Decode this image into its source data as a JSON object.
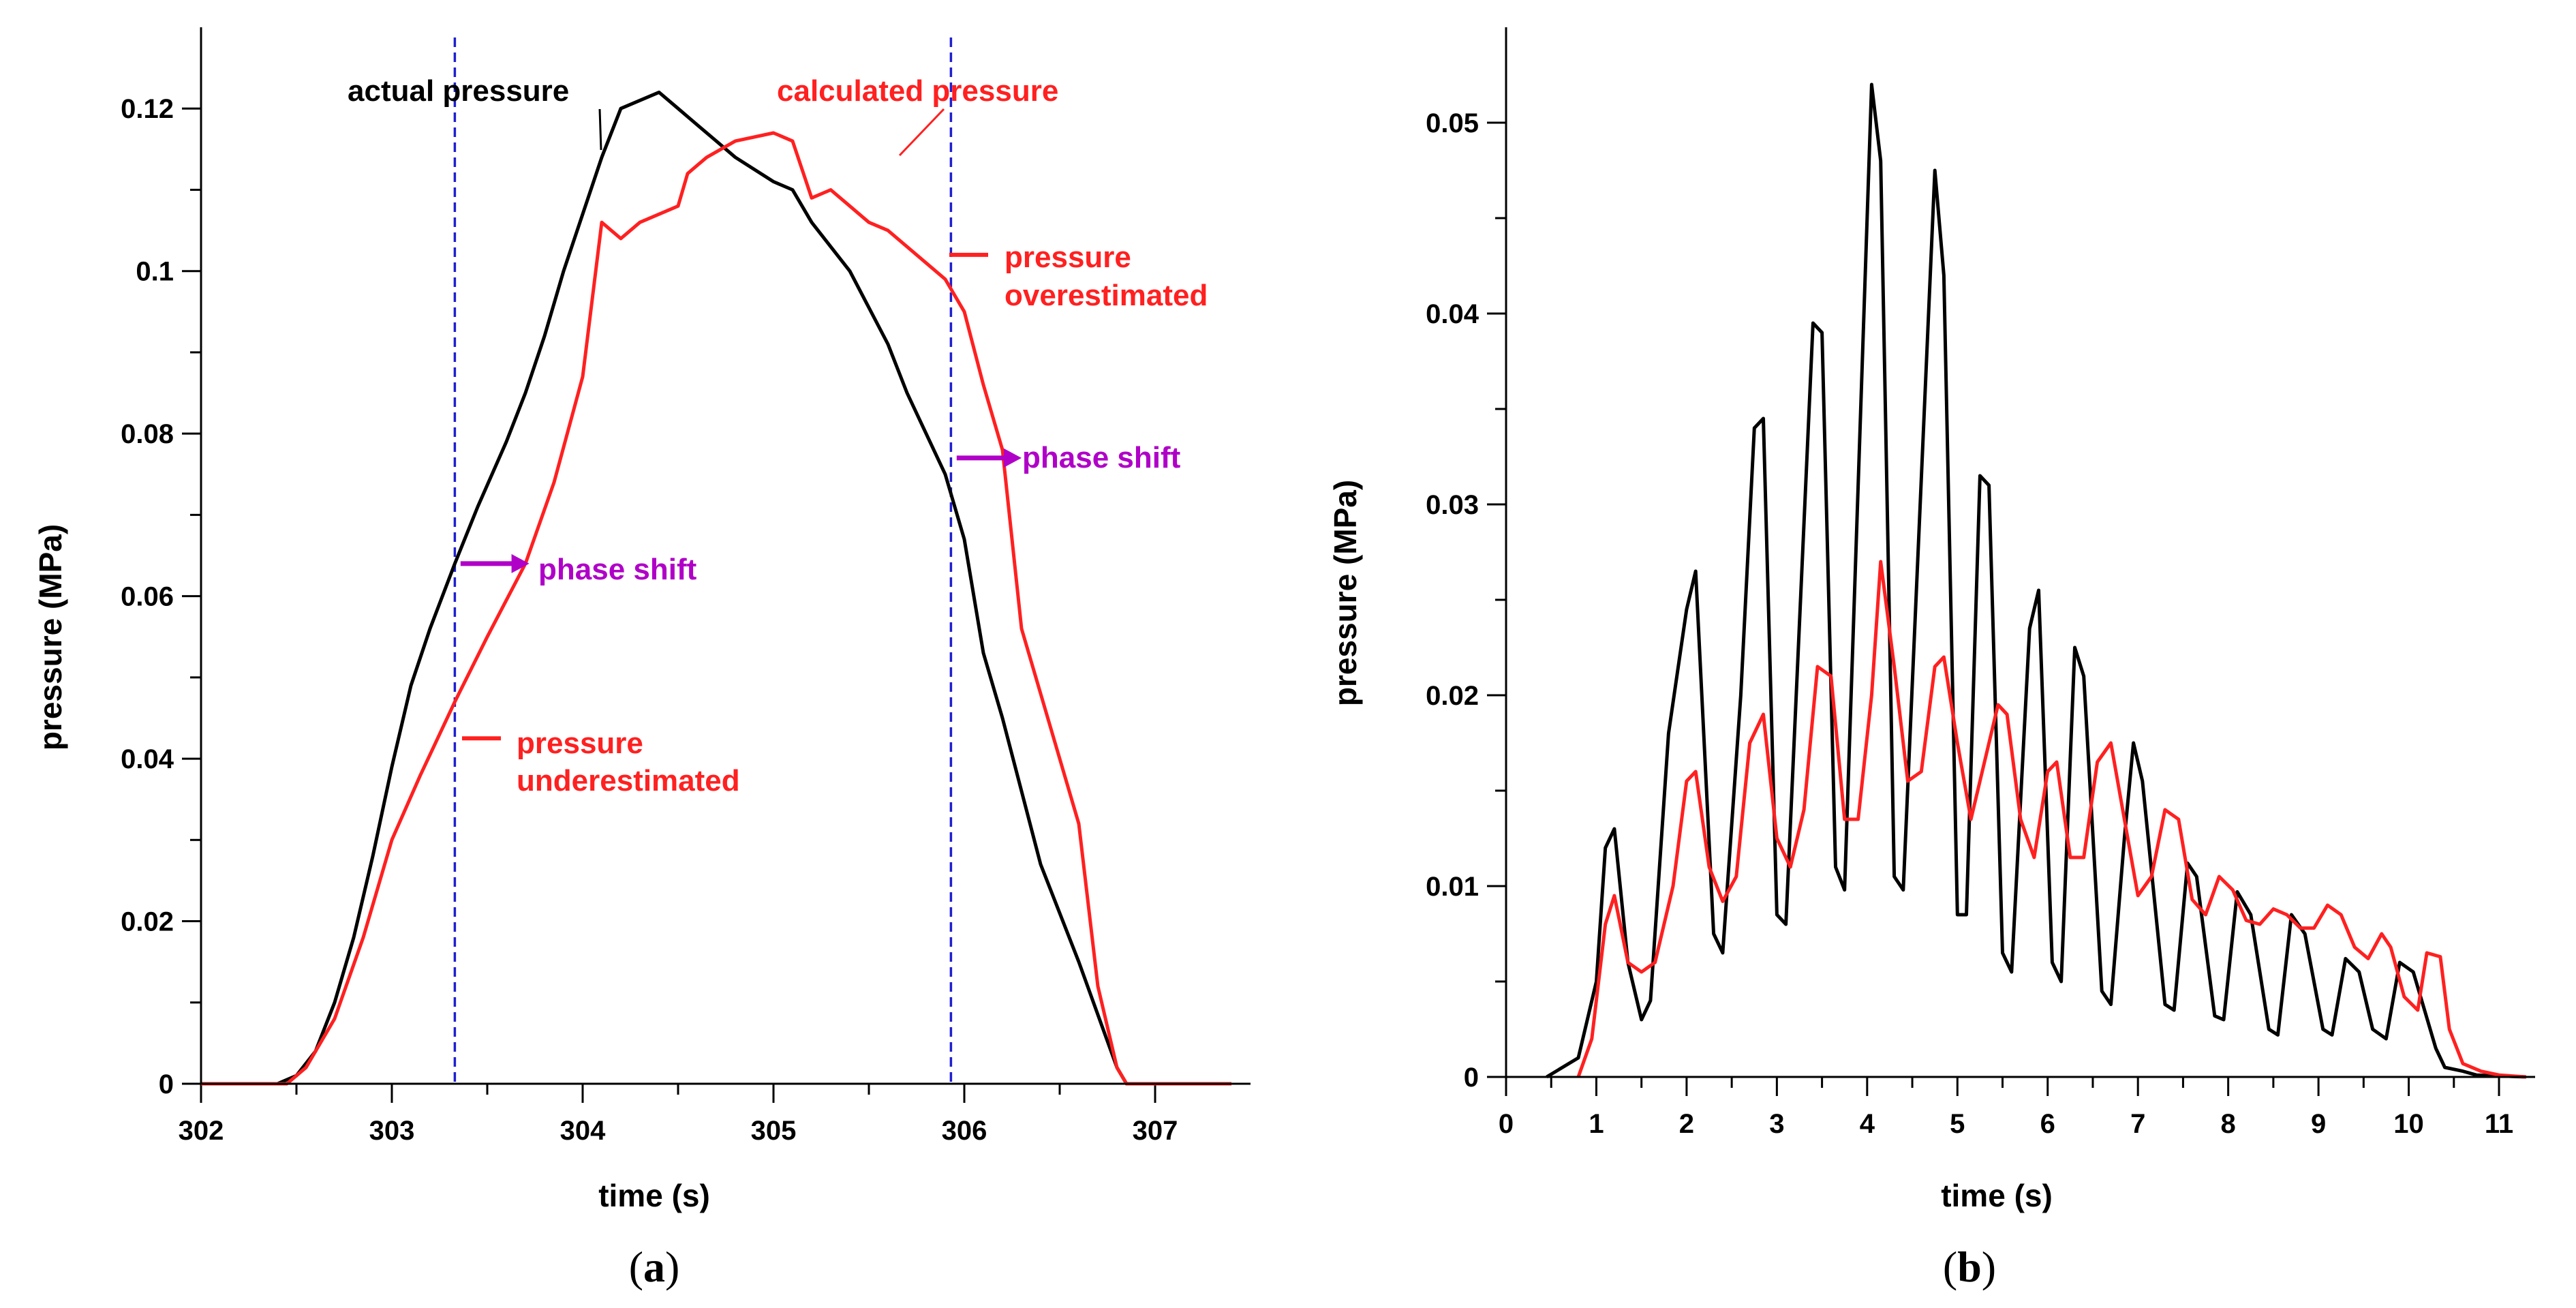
{
  "figure": {
    "colors": {
      "actual": "#000000",
      "calculated": "#ff2020",
      "marker": "#1f1fd0",
      "shift": "#b000c8"
    }
  },
  "chart_data": [
    {
      "type": "line",
      "panel_label": "(a)",
      "panel_letter": "a",
      "xlabel": "time (s)",
      "ylabel": "pressure (MPa)",
      "xlim": [
        302,
        307.5
      ],
      "ylim": [
        0,
        0.13
      ],
      "x_ticks": [
        302,
        303,
        304,
        305,
        306,
        307
      ],
      "x_tick_labels": [
        "302",
        "303",
        "304",
        "305",
        "306",
        "307"
      ],
      "y_ticks": [
        0,
        0.02,
        0.04,
        0.06,
        0.08,
        0.1,
        0.12
      ],
      "y_tick_labels": [
        "0",
        "0.02",
        "0.04",
        "0.06",
        "0.08",
        "0.1",
        "0.12"
      ],
      "series": [
        {
          "name": "actual pressure",
          "color": "#000000",
          "x": [
            302.0,
            302.4,
            302.5,
            302.6,
            302.7,
            302.8,
            302.9,
            303.0,
            303.1,
            303.2,
            303.33,
            303.45,
            303.6,
            303.7,
            303.8,
            303.9,
            304.0,
            304.1,
            304.2,
            304.3,
            304.4,
            304.5,
            304.6,
            304.7,
            304.8,
            305.0,
            305.1,
            305.2,
            305.4,
            305.6,
            305.7,
            305.8,
            305.9,
            306.0,
            306.1,
            306.2,
            306.4,
            306.6,
            306.8,
            306.85,
            307.0
          ],
          "y": [
            0,
            0,
            0.001,
            0.004,
            0.01,
            0.018,
            0.028,
            0.039,
            0.049,
            0.056,
            0.064,
            0.071,
            0.079,
            0.085,
            0.092,
            0.1,
            0.107,
            0.114,
            0.12,
            0.121,
            0.122,
            0.12,
            0.118,
            0.116,
            0.114,
            0.111,
            0.11,
            0.106,
            0.1,
            0.091,
            0.085,
            0.08,
            0.075,
            0.067,
            0.053,
            0.045,
            0.027,
            0.015,
            0.002,
            0,
            0
          ]
        },
        {
          "name": "calculated pressure",
          "color": "#ff2020",
          "x": [
            302.0,
            302.45,
            302.55,
            302.7,
            302.85,
            303.0,
            303.15,
            303.33,
            303.5,
            303.7,
            303.85,
            304.0,
            304.1,
            304.2,
            304.3,
            304.5,
            304.55,
            304.65,
            304.8,
            305.0,
            305.1,
            305.2,
            305.3,
            305.4,
            305.5,
            305.6,
            305.8,
            305.9,
            306.0,
            306.1,
            306.2,
            306.3,
            306.4,
            306.6,
            306.7,
            306.8,
            306.85,
            307.0,
            307.4
          ],
          "y": [
            0,
            0,
            0.002,
            0.008,
            0.018,
            0.03,
            0.038,
            0.047,
            0.055,
            0.064,
            0.074,
            0.087,
            0.106,
            0.104,
            0.106,
            0.108,
            0.112,
            0.114,
            0.116,
            0.117,
            0.116,
            0.109,
            0.11,
            0.108,
            0.106,
            0.105,
            0.101,
            0.099,
            0.095,
            0.086,
            0.078,
            0.056,
            0.048,
            0.032,
            0.012,
            0.002,
            0,
            0,
            0
          ]
        }
      ],
      "annotations": {
        "actual_label": "actual pressure",
        "calculated_label": "calculated pressure",
        "overestimated_1": "pressure",
        "overestimated_2": "overestimated",
        "underestimated_1": "pressure",
        "underestimated_2": "underestimated",
        "phase_shift_1": "phase shift",
        "phase_shift_2": "phase shift",
        "marker_lines_x": [
          303.33,
          305.93
        ]
      }
    },
    {
      "type": "line",
      "panel_label": "(b)",
      "panel_letter": "b",
      "xlabel": "time (s)",
      "ylabel": "pressure (MPa)",
      "xlim": [
        0,
        11.4
      ],
      "ylim": [
        0,
        0.055
      ],
      "x_ticks": [
        0,
        1,
        2,
        3,
        4,
        5,
        6,
        7,
        8,
        9,
        10,
        11
      ],
      "x_tick_labels": [
        "0",
        "1",
        "2",
        "3",
        "4",
        "5",
        "6",
        "7",
        "8",
        "9",
        "10",
        "11"
      ],
      "y_ticks": [
        0,
        0.01,
        0.02,
        0.03,
        0.04,
        0.05
      ],
      "y_tick_labels": [
        "0",
        "0.01",
        "0.02",
        "0.03",
        "0.04",
        "0.05"
      ],
      "series": [
        {
          "name": "actual pressure",
          "color": "#000000",
          "x": [
            0.45,
            0.8,
            1.0,
            1.1,
            1.2,
            1.35,
            1.5,
            1.6,
            1.8,
            2.0,
            2.1,
            2.3,
            2.4,
            2.6,
            2.75,
            2.85,
            3.0,
            3.1,
            3.4,
            3.5,
            3.65,
            3.75,
            4.05,
            4.15,
            4.3,
            4.4,
            4.75,
            4.85,
            5.0,
            5.1,
            5.25,
            5.35,
            5.5,
            5.6,
            5.8,
            5.9,
            6.05,
            6.15,
            6.3,
            6.4,
            6.6,
            6.7,
            6.85,
            6.95,
            7.05,
            7.3,
            7.4,
            7.55,
            7.65,
            7.85,
            7.95,
            8.1,
            8.25,
            8.45,
            8.55,
            8.7,
            8.85,
            9.05,
            9.15,
            9.3,
            9.45,
            9.6,
            9.75,
            9.9,
            10.05,
            10.3,
            10.4,
            10.6,
            10.75,
            11.3
          ],
          "y": [
            0,
            0.001,
            0.005,
            0.012,
            0.013,
            0.006,
            0.003,
            0.004,
            0.018,
            0.0245,
            0.0265,
            0.0075,
            0.0065,
            0.02,
            0.034,
            0.0345,
            0.0085,
            0.008,
            0.0395,
            0.039,
            0.011,
            0.0098,
            0.052,
            0.048,
            0.0105,
            0.0098,
            0.0475,
            0.042,
            0.0085,
            0.0085,
            0.0315,
            0.031,
            0.0065,
            0.0055,
            0.0235,
            0.0255,
            0.006,
            0.005,
            0.0225,
            0.021,
            0.0045,
            0.0038,
            0.0125,
            0.0175,
            0.0155,
            0.0038,
            0.0035,
            0.0112,
            0.0105,
            0.0032,
            0.003,
            0.0097,
            0.0085,
            0.0025,
            0.0022,
            0.0085,
            0.0075,
            0.0025,
            0.0022,
            0.0062,
            0.0055,
            0.0025,
            0.002,
            0.006,
            0.0055,
            0.0015,
            0.0005,
            0.0003,
            0.0001,
            0
          ]
        },
        {
          "name": "calculated pressure",
          "color": "#ff2020",
          "x": [
            0.8,
            0.95,
            1.1,
            1.2,
            1.35,
            1.5,
            1.65,
            1.85,
            2.0,
            2.1,
            2.25,
            2.4,
            2.55,
            2.7,
            2.85,
            3.0,
            3.15,
            3.3,
            3.45,
            3.6,
            3.75,
            3.9,
            4.05,
            4.15,
            4.3,
            4.45,
            4.6,
            4.75,
            4.85,
            5.0,
            5.15,
            5.3,
            5.45,
            5.55,
            5.7,
            5.85,
            6.0,
            6.1,
            6.25,
            6.4,
            6.55,
            6.7,
            6.85,
            7.0,
            7.15,
            7.3,
            7.45,
            7.6,
            7.75,
            7.9,
            8.05,
            8.2,
            8.35,
            8.5,
            8.65,
            8.8,
            8.95,
            9.1,
            9.25,
            9.4,
            9.55,
            9.7,
            9.8,
            9.95,
            10.1,
            10.2,
            10.35,
            10.45,
            10.6,
            10.8,
            11.0,
            11.3
          ],
          "y": [
            0,
            0.002,
            0.008,
            0.0095,
            0.006,
            0.0055,
            0.006,
            0.01,
            0.0155,
            0.016,
            0.011,
            0.0092,
            0.0105,
            0.0175,
            0.019,
            0.0125,
            0.011,
            0.014,
            0.0215,
            0.021,
            0.0135,
            0.0135,
            0.02,
            0.027,
            0.0215,
            0.0155,
            0.016,
            0.0215,
            0.022,
            0.0175,
            0.0135,
            0.0165,
            0.0195,
            0.019,
            0.0135,
            0.0115,
            0.016,
            0.0165,
            0.0115,
            0.0115,
            0.0165,
            0.0175,
            0.0135,
            0.0095,
            0.0105,
            0.014,
            0.0135,
            0.0093,
            0.0085,
            0.0105,
            0.0098,
            0.0082,
            0.008,
            0.0088,
            0.0085,
            0.0078,
            0.0078,
            0.009,
            0.0085,
            0.0068,
            0.0062,
            0.0075,
            0.0068,
            0.0042,
            0.0035,
            0.0065,
            0.0063,
            0.0025,
            0.0007,
            0.0003,
            0.0001,
            0
          ]
        }
      ]
    }
  ]
}
